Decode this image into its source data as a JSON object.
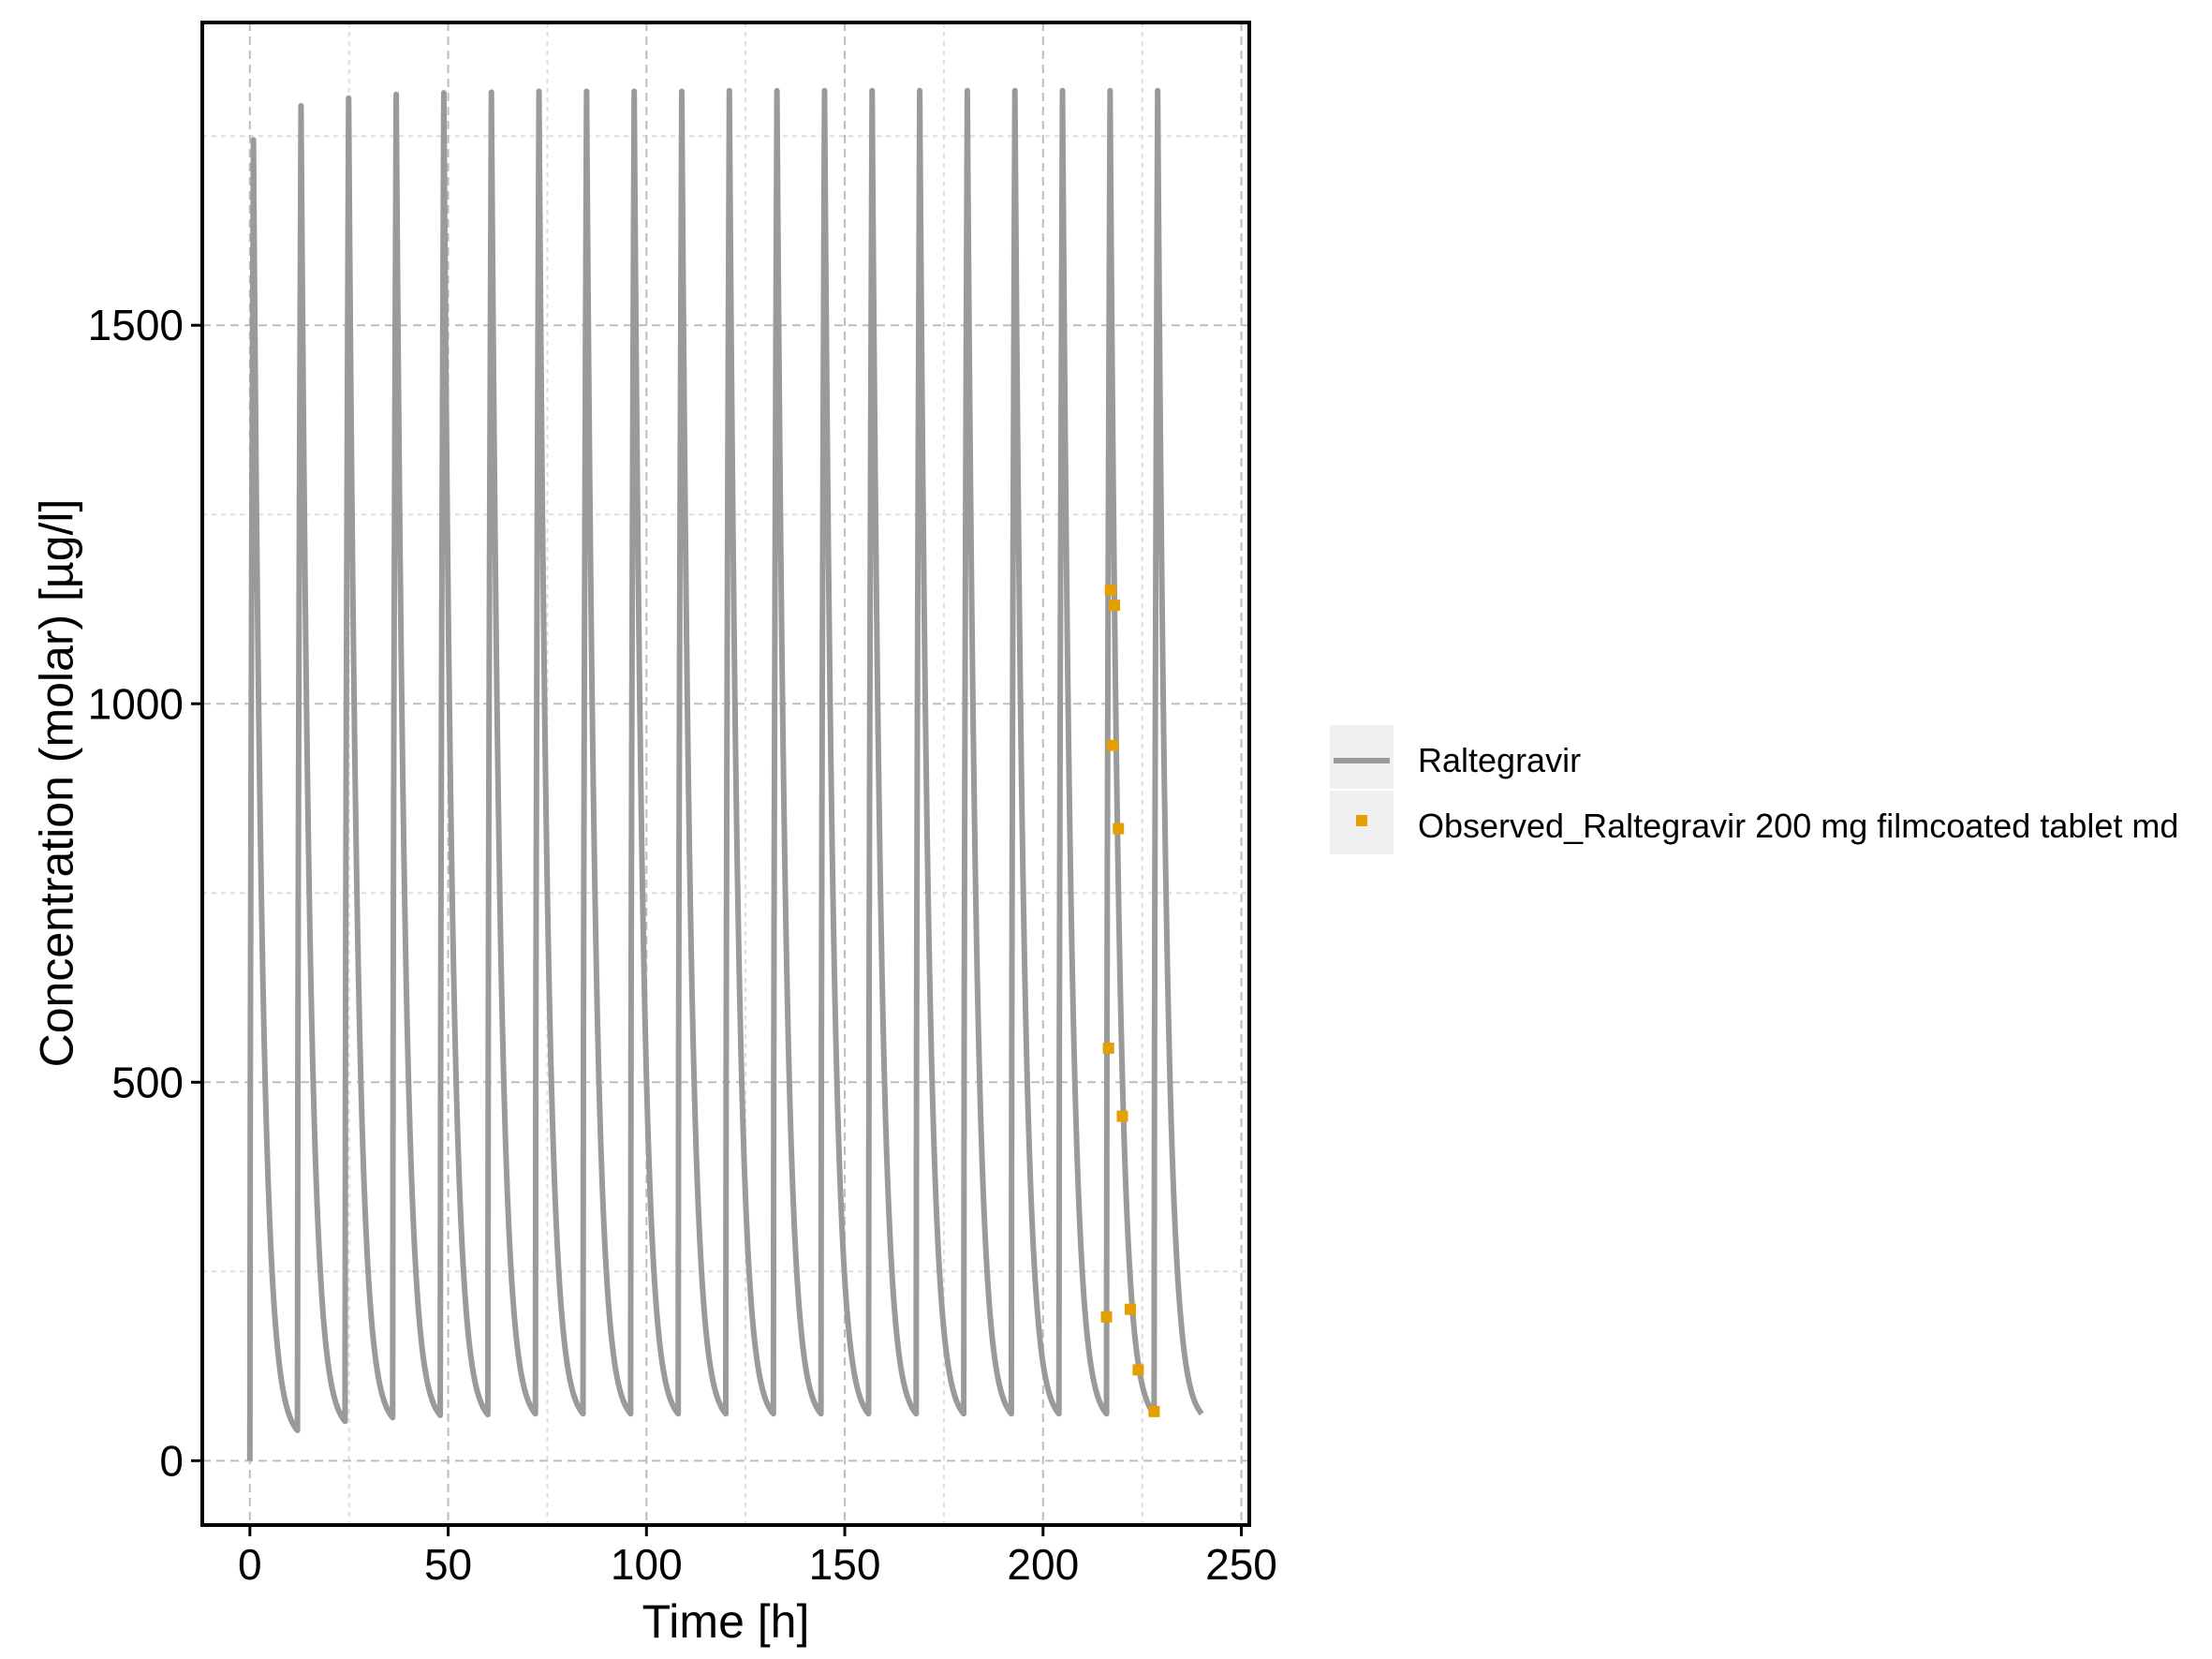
{
  "chart_data": {
    "type": "line",
    "title": "",
    "xlabel": "Time [h]",
    "ylabel": "Concentration (molar) [µg/l]",
    "xlim": [
      -12,
      252
    ],
    "ylim": [
      -85,
      1900
    ],
    "x_ticks": [
      0,
      50,
      100,
      150,
      200,
      250
    ],
    "y_ticks": [
      0,
      500,
      1000,
      1500
    ],
    "grid": true,
    "legend_position": "right",
    "series": [
      {
        "name": "Raltegravir",
        "kind": "line",
        "color": "#9a9a9a",
        "dose_interval_h": 12,
        "n_doses": 20,
        "end_time_h": 240,
        "peak_times_h": [
          0.9,
          12.9,
          24.9,
          36.9,
          48.9,
          60.9,
          72.9,
          84.9,
          96.9,
          108.9,
          120.9,
          132.9,
          144.9,
          156.9,
          168.9,
          180.9,
          192.9,
          204.9,
          216.9,
          228.9
        ],
        "peaks": [
          1745,
          1790,
          1800,
          1805,
          1807,
          1808,
          1809,
          1809,
          1809,
          1809,
          1810,
          1810,
          1810,
          1810,
          1810,
          1810,
          1810,
          1810,
          1810,
          1810
        ],
        "troughs": [
          40,
          52,
          57,
          60,
          61,
          62,
          62,
          62,
          62,
          62,
          62,
          62,
          62,
          62,
          62,
          62,
          62,
          62,
          62,
          62
        ],
        "end_value": 62
      },
      {
        "name": "Observed_Raltegravir 200 mg filmcoated tablet md",
        "kind": "scatter",
        "color": "#e69f00",
        "points": [
          {
            "x": 216.0,
            "y": 190
          },
          {
            "x": 216.5,
            "y": 545
          },
          {
            "x": 217.0,
            "y": 1150
          },
          {
            "x": 217.5,
            "y": 945
          },
          {
            "x": 218.0,
            "y": 1130
          },
          {
            "x": 219.0,
            "y": 835
          },
          {
            "x": 220.0,
            "y": 455
          },
          {
            "x": 222.0,
            "y": 200
          },
          {
            "x": 224.0,
            "y": 120
          },
          {
            "x": 228.0,
            "y": 65
          }
        ]
      }
    ]
  }
}
